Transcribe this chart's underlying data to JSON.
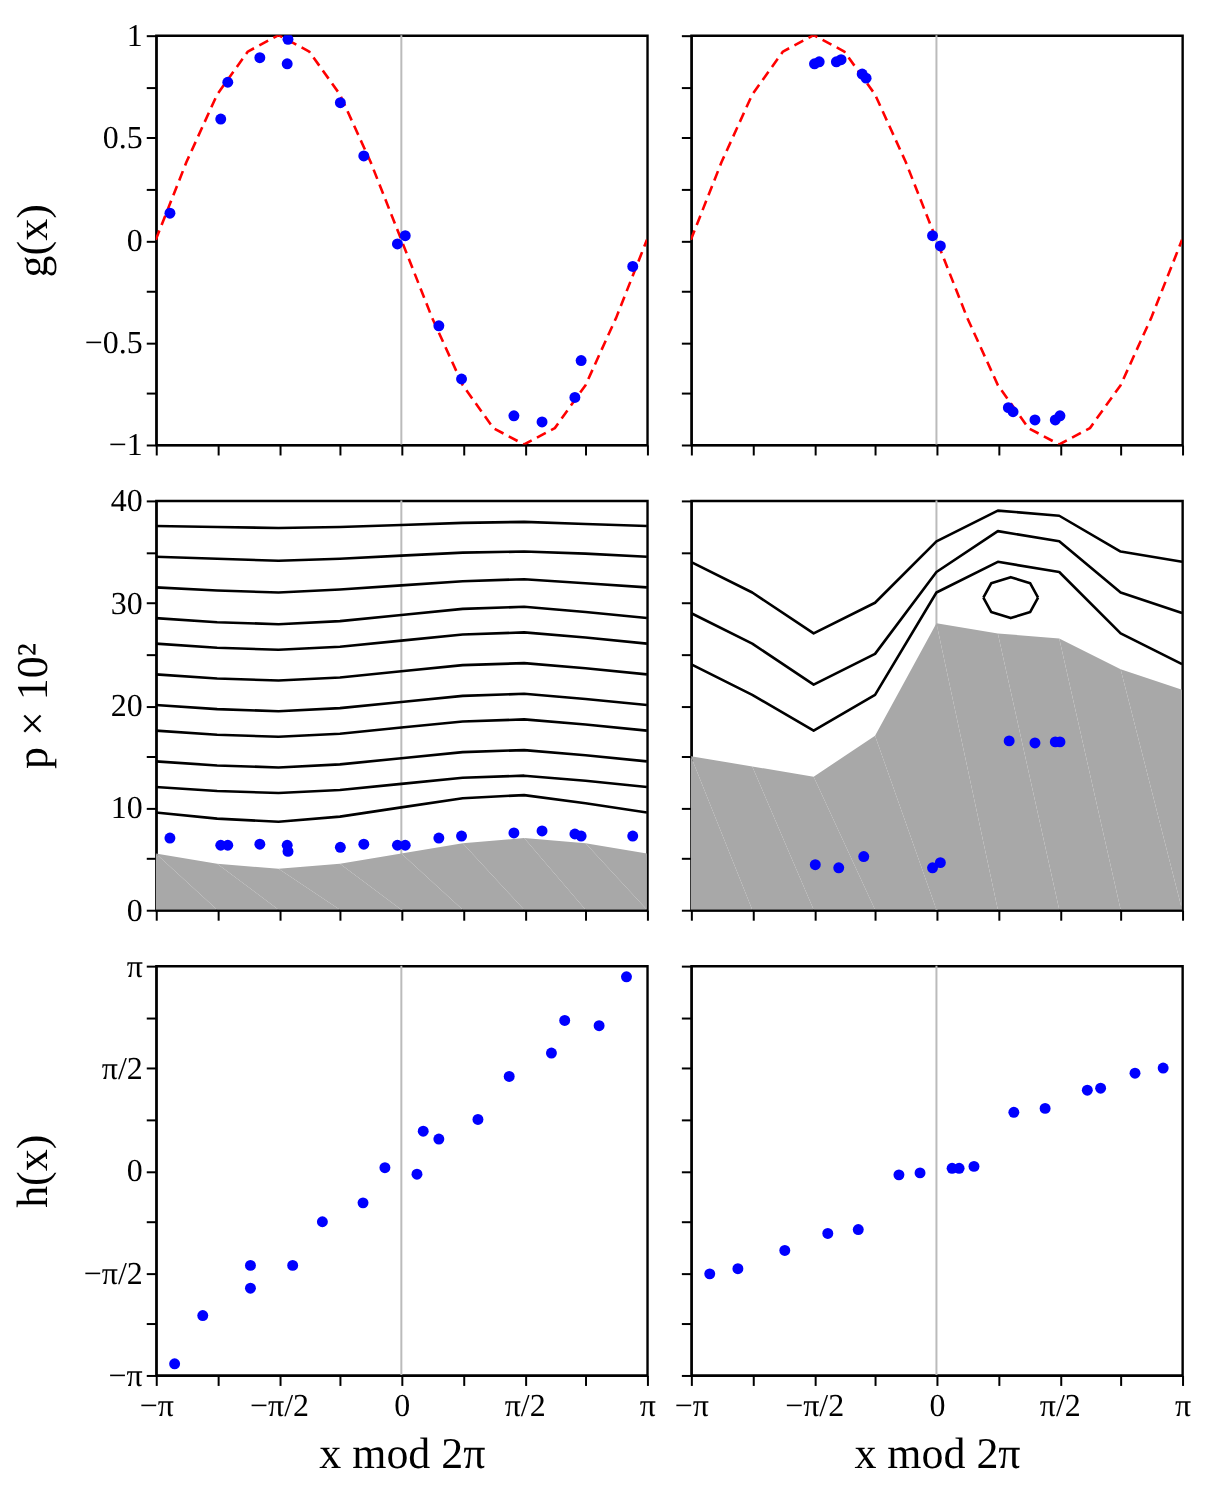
{
  "chart_data": [
    {
      "type": "scatter",
      "ylabel": "g(x)",
      "tick_labels": "y",
      "xlim": [
        -3.1416,
        3.1416
      ],
      "ylim": [
        -1,
        1
      ],
      "xticks": [
        {
          "value": -3.1416,
          "label": null
        },
        {
          "value": -2.3562,
          "label": null
        },
        {
          "value": -1.5708,
          "label": null
        },
        {
          "value": -0.7854,
          "label": null
        },
        {
          "value": 0,
          "label": null
        },
        {
          "value": 0.7854,
          "label": null
        },
        {
          "value": 1.5708,
          "label": null
        },
        {
          "value": 2.3562,
          "label": null
        },
        {
          "value": 3.1416,
          "label": null
        }
      ],
      "yticks": [
        -1,
        {
          "value": -0.75,
          "label": null
        },
        -0.5,
        {
          "value": -0.25,
          "label": null
        },
        0,
        {
          "value": 0.25,
          "label": null
        },
        0.5,
        {
          "value": 0.75,
          "label": null
        },
        1
      ],
      "ref_lines": [
        {
          "axis": "x",
          "value": 0,
          "color": "#bbbbbb"
        }
      ],
      "series": [
        {
          "type": "line",
          "color": "#ff0000",
          "line_style": "dashed",
          "x": [
            -3.1416,
            -2.7489,
            -2.3562,
            -1.9635,
            -1.5708,
            -1.1781,
            -0.7854,
            -0.3927,
            0,
            0.3927,
            0.7854,
            1.1781,
            1.5708,
            1.9635,
            2.3562,
            2.7489,
            3.1416
          ],
          "values": [
            0,
            0.38,
            0.71,
            0.92,
            1,
            0.92,
            0.71,
            0.38,
            0,
            -0.38,
            -0.71,
            -0.92,
            -1,
            -0.92,
            -0.71,
            -0.38,
            0
          ]
        },
        {
          "color": "#0000ff",
          "marker": "circle",
          "x": [
            -2.96,
            -2.31,
            -2.22,
            -1.81,
            -1.45,
            -1.46,
            -0.78,
            -0.48,
            -0.05,
            0.05,
            0.48,
            0.77,
            1.44,
            1.8,
            2.22,
            2.3,
            2.96
          ],
          "values": [
            0.13,
            0.59,
            0.77,
            0.89,
            0.98,
            0.86,
            0.67,
            0.41,
            -0.02,
            0.02,
            -0.42,
            -0.68,
            -0.86,
            -0.89,
            -0.77,
            -0.59,
            -0.13
          ]
        }
      ]
    },
    {
      "type": "scatter",
      "tick_labels": false,
      "xlim": [
        -3.1416,
        3.1416
      ],
      "ylim": [
        -1,
        1
      ],
      "xticks": [
        {
          "value": -3.1416,
          "label": null
        },
        {
          "value": -2.3562,
          "label": null
        },
        {
          "value": -1.5708,
          "label": null
        },
        {
          "value": -0.7854,
          "label": null
        },
        {
          "value": 0,
          "label": null
        },
        {
          "value": 0.7854,
          "label": null
        },
        {
          "value": 1.5708,
          "label": null
        },
        {
          "value": 2.3562,
          "label": null
        },
        {
          "value": 3.1416,
          "label": null
        }
      ],
      "yticks": [
        {
          "value": -1,
          "label": null
        },
        {
          "value": -0.75,
          "label": null
        },
        {
          "value": -0.5,
          "label": null
        },
        {
          "value": -0.25,
          "label": null
        },
        {
          "value": 0,
          "label": null
        },
        {
          "value": 0.25,
          "label": null
        },
        {
          "value": 0.5,
          "label": null
        },
        {
          "value": 0.75,
          "label": null
        },
        {
          "value": 1,
          "label": null
        }
      ],
      "ref_lines": [
        {
          "axis": "x",
          "value": 0,
          "color": "#bbbbbb"
        }
      ],
      "series": [
        {
          "type": "line",
          "color": "#ff0000",
          "line_style": "dashed",
          "x": [
            -3.1416,
            -2.7489,
            -2.3562,
            -1.9635,
            -1.5708,
            -1.1781,
            -0.7854,
            -0.3927,
            0,
            0.3927,
            0.7854,
            1.1781,
            1.5708,
            1.9635,
            2.3562,
            2.7489,
            3.1416
          ],
          "values": [
            0,
            0.38,
            0.71,
            0.92,
            1,
            0.92,
            0.71,
            0.38,
            0,
            -0.38,
            -0.71,
            -0.92,
            -1,
            -0.92,
            -0.71,
            -0.38,
            0
          ]
        },
        {
          "color": "#0000ff",
          "marker": "circle",
          "x": [
            -1.56,
            -1.5,
            -1.28,
            -1.22,
            -0.95,
            -0.9,
            -0.05,
            0.05,
            0.92,
            0.98,
            1.26,
            1.52,
            1.58
          ],
          "values": [
            0.86,
            0.87,
            0.87,
            0.88,
            0.81,
            0.79,
            0.02,
            -0.03,
            -0.82,
            -0.84,
            -0.88,
            -0.88,
            -0.86
          ]
        }
      ]
    },
    {
      "type": "scatter",
      "ylabel": "p × 10²",
      "tick_labels": "y",
      "xlim": [
        -3.1416,
        3.1416
      ],
      "ylim": [
        0,
        40
      ],
      "xticks": [
        {
          "value": -3.1416,
          "label": null
        },
        {
          "value": -2.3562,
          "label": null
        },
        {
          "value": -1.5708,
          "label": null
        },
        {
          "value": -0.7854,
          "label": null
        },
        {
          "value": 0,
          "label": null
        },
        {
          "value": 0.7854,
          "label": null
        },
        {
          "value": 1.5708,
          "label": null
        },
        {
          "value": 2.3562,
          "label": null
        },
        {
          "value": 3.1416,
          "label": null
        }
      ],
      "yticks": [
        0,
        {
          "value": 5,
          "label": null
        },
        10,
        {
          "value": 15,
          "label": null
        },
        20,
        {
          "value": 25,
          "label": null
        },
        30,
        {
          "value": 35,
          "label": null
        },
        40
      ],
      "ref_lines": [
        {
          "axis": "x",
          "value": 0,
          "color": "#bbbbbb"
        }
      ],
      "series": [
        {
          "type": "area",
          "color": "#a8a8a8",
          "x": [
            -3.1416,
            -2.3562,
            -1.5708,
            -0.7854,
            0,
            0.7854,
            1.5708,
            2.3562,
            3.1416
          ],
          "values": [
            5.5,
            4.5,
            4,
            4.5,
            5.5,
            6.5,
            7,
            6.5,
            5.5
          ]
        },
        {
          "type": "line",
          "color": "#000000",
          "x": [
            -3.1416,
            -2.3562,
            -1.5708,
            -0.7854,
            0,
            0.7854,
            1.5708,
            2.3562,
            3.1416
          ],
          "values": [
            9.5,
            8.9,
            8.6,
            9.1,
            10,
            10.9,
            11.2,
            10.4,
            9.5
          ]
        },
        {
          "type": "line",
          "color": "#000000",
          "x": [
            -3.1416,
            -2.3562,
            -1.5708,
            -0.7854,
            0,
            0.7854,
            1.5708,
            2.3562,
            3.1416
          ],
          "values": [
            12,
            11.6,
            11.4,
            11.7,
            12.3,
            12.9,
            13.1,
            12.6,
            12
          ]
        },
        {
          "type": "line",
          "color": "#000000",
          "x": [
            -3.1416,
            -2.3562,
            -1.5708,
            -0.7854,
            0,
            0.7854,
            1.5708,
            2.3562,
            3.1416
          ],
          "values": [
            14.5,
            14.1,
            13.9,
            14.2,
            14.8,
            15.4,
            15.6,
            15.1,
            14.5
          ]
        },
        {
          "type": "line",
          "color": "#000000",
          "x": [
            -3.1416,
            -2.3562,
            -1.5708,
            -0.7854,
            0,
            0.7854,
            1.5708,
            2.3562,
            3.1416
          ],
          "values": [
            17.5,
            17.1,
            16.9,
            17.2,
            17.8,
            18.4,
            18.6,
            18.1,
            17.5
          ]
        },
        {
          "type": "line",
          "color": "#000000",
          "x": [
            -3.1416,
            -2.3562,
            -1.5708,
            -0.7854,
            0,
            0.7854,
            1.5708,
            2.3562,
            3.1416
          ],
          "values": [
            20,
            19.6,
            19.4,
            19.7,
            20.3,
            20.9,
            21.1,
            20.6,
            20
          ]
        },
        {
          "type": "line",
          "color": "#000000",
          "x": [
            -3.1416,
            -2.3562,
            -1.5708,
            -0.7854,
            0,
            0.7854,
            1.5708,
            2.3562,
            3.1416
          ],
          "values": [
            23,
            22.6,
            22.4,
            22.7,
            23.3,
            23.9,
            24.1,
            23.6,
            23
          ]
        },
        {
          "type": "line",
          "color": "#000000",
          "x": [
            -3.1416,
            -2.3562,
            -1.5708,
            -0.7854,
            0,
            0.7854,
            1.5708,
            2.3562,
            3.1416
          ],
          "values": [
            26,
            25.6,
            25.4,
            25.7,
            26.3,
            26.9,
            27.1,
            26.6,
            26
          ]
        },
        {
          "type": "line",
          "color": "#000000",
          "x": [
            -3.1416,
            -2.3562,
            -1.5708,
            -0.7854,
            0,
            0.7854,
            1.5708,
            2.3562,
            3.1416
          ],
          "values": [
            28.5,
            28.1,
            27.9,
            28.2,
            28.8,
            29.4,
            29.6,
            29.1,
            28.5
          ]
        },
        {
          "type": "line",
          "color": "#000000",
          "x": [
            -3.1416,
            -2.3562,
            -1.5708,
            -0.7854,
            0,
            0.7854,
            1.5708,
            2.3562,
            3.1416
          ],
          "values": [
            31.5,
            31.2,
            31,
            31.3,
            31.7,
            32.1,
            32.3,
            31.9,
            31.5
          ]
        },
        {
          "type": "line",
          "color": "#000000",
          "x": [
            -3.1416,
            -2.3562,
            -1.5708,
            -0.7854,
            0,
            0.7854,
            1.5708,
            2.3562,
            3.1416
          ],
          "values": [
            34.5,
            34.3,
            34.1,
            34.3,
            34.6,
            34.9,
            35,
            34.8,
            34.5
          ]
        },
        {
          "type": "line",
          "color": "#000000",
          "x": [
            -3.1416,
            -2.3562,
            -1.5708,
            -0.7854,
            0,
            0.7854,
            1.5708,
            2.3562,
            3.1416
          ],
          "values": [
            37.5,
            37.4,
            37.3,
            37.4,
            37.6,
            37.8,
            37.9,
            37.7,
            37.5
          ]
        },
        {
          "color": "#0000ff",
          "marker": "circle",
          "x": [
            -2.96,
            -2.31,
            -2.22,
            -1.81,
            -1.46,
            -1.45,
            -0.78,
            -0.48,
            -0.05,
            0.05,
            0.48,
            0.77,
            1.44,
            1.8,
            2.22,
            2.3,
            2.96
          ],
          "values": [
            7.0,
            6.3,
            6.3,
            6.4,
            6.3,
            5.7,
            6.1,
            6.4,
            6.3,
            6.3,
            7.0,
            7.2,
            7.5,
            7.7,
            7.4,
            7.2,
            7.2
          ]
        }
      ]
    },
    {
      "type": "scatter",
      "tick_labels": false,
      "xlim": [
        -3.1416,
        3.1416
      ],
      "ylim": [
        0,
        40
      ],
      "xticks": [
        {
          "value": -3.1416,
          "label": null
        },
        {
          "value": -2.3562,
          "label": null
        },
        {
          "value": -1.5708,
          "label": null
        },
        {
          "value": -0.7854,
          "label": null
        },
        {
          "value": 0,
          "label": null
        },
        {
          "value": 0.7854,
          "label": null
        },
        {
          "value": 1.5708,
          "label": null
        },
        {
          "value": 2.3562,
          "label": null
        },
        {
          "value": 3.1416,
          "label": null
        }
      ],
      "yticks": [
        {
          "value": 0,
          "label": null
        },
        {
          "value": 5,
          "label": null
        },
        {
          "value": 10,
          "label": null
        },
        {
          "value": 15,
          "label": null
        },
        {
          "value": 20,
          "label": null
        },
        {
          "value": 25,
          "label": null
        },
        {
          "value": 30,
          "label": null
        },
        {
          "value": 35,
          "label": null
        },
        {
          "value": 40,
          "label": null
        }
      ],
      "ref_lines": [
        {
          "axis": "x",
          "value": 0,
          "color": "#bbbbbb"
        }
      ],
      "series": [
        {
          "type": "area",
          "color": "#a8a8a8",
          "x": [
            -3.1416,
            -2.3562,
            -1.5708,
            -0.7854,
            0,
            0.7854,
            1.5708,
            2.3562,
            3.1416
          ],
          "values": [
            15,
            14,
            13,
            17,
            28,
            27,
            26.5,
            23.5,
            21.5
          ]
        },
        {
          "type": "line",
          "color": "#000000",
          "x": [
            -3.1416,
            -2.3562,
            -1.5708,
            -0.7854,
            0,
            0.7854,
            1.5708,
            2.3562,
            3.1416
          ],
          "values": [
            24,
            21,
            17.5,
            21,
            31,
            34,
            33,
            27,
            24
          ]
        },
        {
          "type": "line",
          "color": "#000000",
          "x": [
            -3.1416,
            -2.3562,
            -1.5708,
            -0.7854,
            0,
            0.7854,
            1.5708,
            2.3562,
            3.1416
          ],
          "values": [
            29,
            26,
            22,
            25,
            33,
            37,
            36,
            31,
            29
          ]
        },
        {
          "type": "line",
          "color": "#000000",
          "x": [
            -3.1416,
            -2.3562,
            -1.5708,
            -0.7854,
            0,
            0.7854,
            1.5708,
            2.3562,
            3.1416
          ],
          "values": [
            34,
            31,
            27,
            30,
            36,
            39,
            38.5,
            35,
            34
          ]
        },
        {
          "type": "line",
          "color": "#000000",
          "x": [
            0.6,
            0.7,
            0.95,
            1.2,
            1.3
          ],
          "values": [
            30.5,
            31.9,
            32.5,
            31.9,
            30.5
          ]
        },
        {
          "type": "line",
          "color": "#000000",
          "x": [
            0.6,
            0.7,
            0.95,
            1.2,
            1.3
          ],
          "values": [
            30.5,
            29.1,
            28.5,
            29.1,
            30.5
          ]
        },
        {
          "color": "#0000ff",
          "marker": "circle",
          "x": [
            -1.55,
            -1.25,
            -0.93,
            -0.05,
            0.05,
            0.93,
            1.26,
            1.52,
            1.58
          ],
          "values": [
            4.4,
            4.1,
            5.2,
            4.1,
            4.6,
            16.5,
            16.3,
            16.4,
            16.4
          ]
        }
      ]
    },
    {
      "type": "scatter",
      "ylabel": "h(x)",
      "xlabel": "x mod 2π",
      "xlim": [
        -3.1416,
        3.1416
      ],
      "ylim": [
        -3.1416,
        3.1416
      ],
      "xticks": [
        {
          "value": -3.1416,
          "label": "−π"
        },
        {
          "value": -2.3562,
          "label": null
        },
        {
          "value": -1.5708,
          "label": "−π/2"
        },
        {
          "value": -0.7854,
          "label": null
        },
        0,
        {
          "value": 0.7854,
          "label": null
        },
        {
          "value": 1.5708,
          "label": "π/2"
        },
        {
          "value": 2.3562,
          "label": null
        },
        {
          "value": 3.1416,
          "label": "π"
        }
      ],
      "yticks": [
        {
          "value": -3.1416,
          "label": "−π"
        },
        {
          "value": -2.3562,
          "label": null
        },
        {
          "value": -1.5708,
          "label": "−π/2"
        },
        {
          "value": -0.7854,
          "label": null
        },
        0,
        {
          "value": 0.7854,
          "label": null
        },
        {
          "value": 1.5708,
          "label": "π/2"
        },
        {
          "value": 2.3562,
          "label": null
        },
        {
          "value": 3.1416,
          "label": "π"
        }
      ],
      "ref_lines": [
        {
          "axis": "x",
          "value": 0,
          "color": "#bbbbbb"
        }
      ],
      "series": [
        {
          "color": "#0000ff",
          "marker": "circle",
          "x": [
            -2.9,
            -2.54,
            -1.93,
            -1.93,
            -1.39,
            -1.01,
            -0.49,
            -0.21,
            0.2,
            0.28,
            0.48,
            0.98,
            1.38,
            1.92,
            2.09,
            2.53,
            2.88
          ],
          "values": [
            -2.97,
            -2.23,
            -1.46,
            -1.81,
            -1.46,
            -0.79,
            -0.5,
            0.04,
            -0.06,
            0.6,
            0.48,
            0.78,
            1.44,
            1.8,
            2.3,
            2.22,
            2.97
          ]
        }
      ]
    },
    {
      "type": "scatter",
      "xlabel": "x mod 2π",
      "tick_labels": "x",
      "xlim": [
        -3.1416,
        3.1416
      ],
      "ylim": [
        -3.1416,
        3.1416
      ],
      "xticks": [
        {
          "value": -3.1416,
          "label": "−π"
        },
        {
          "value": -2.3562,
          "label": null
        },
        {
          "value": -1.5708,
          "label": "−π/2"
        },
        {
          "value": -0.7854,
          "label": null
        },
        0,
        {
          "value": 0.7854,
          "label": null
        },
        {
          "value": 1.5708,
          "label": "π/2"
        },
        {
          "value": 2.3562,
          "label": null
        },
        {
          "value": 3.1416,
          "label": "π"
        }
      ],
      "yticks": [
        {
          "value": -3.1416,
          "label": null
        },
        {
          "value": -2.3562,
          "label": null
        },
        {
          "value": -1.5708,
          "label": null
        },
        {
          "value": -0.7854,
          "label": null
        },
        {
          "value": 0,
          "label": null
        },
        {
          "value": 0.7854,
          "label": null
        },
        {
          "value": 1.5708,
          "label": null
        },
        {
          "value": 2.3562,
          "label": null
        },
        {
          "value": 3.1416,
          "label": null
        }
      ],
      "ref_lines": [
        {
          "axis": "x",
          "value": 0,
          "color": "#bbbbbb"
        }
      ],
      "series": [
        {
          "color": "#0000ff",
          "marker": "circle",
          "x": [
            -2.9,
            -2.54,
            -1.94,
            -1.39,
            -1.0,
            -0.48,
            -0.21,
            0.2,
            0.29,
            0.48,
            0.99,
            1.39,
            1.93,
            2.1,
            2.54,
            2.9
          ],
          "values": [
            -1.59,
            -1.51,
            -1.23,
            -0.97,
            -0.91,
            -0.07,
            -0.04,
            0.03,
            0.03,
            0.06,
            0.89,
            0.95,
            1.23,
            1.26,
            1.49,
            1.57
          ]
        }
      ]
    }
  ]
}
